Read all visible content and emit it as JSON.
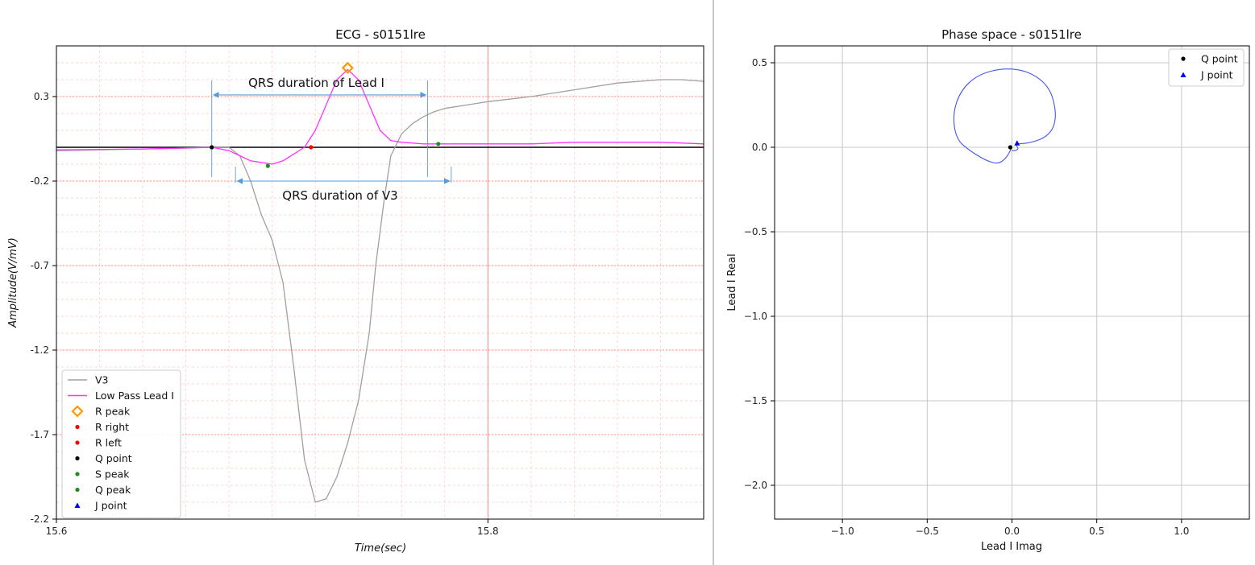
{
  "chart_data": [
    {
      "type": "line",
      "title": "ECG - s0151lre",
      "xlabel": "Time(sec)",
      "ylabel": "Amplitude(V/mV)",
      "xlim": [
        15.6,
        15.9
      ],
      "ylim": [
        -2.2,
        0.6
      ],
      "xticks": [
        15.6,
        15.8
      ],
      "xtick_labels": [
        "15.6",
        "15.8"
      ],
      "yticks": [
        0.3,
        -0.2,
        -0.7,
        -1.2,
        -1.7,
        -2.2
      ],
      "ytick_labels": [
        "0.3",
        "-0.2",
        "-0.7",
        "-1.2",
        "-1.7",
        "-2.2"
      ],
      "grid": true,
      "legend_position": "lower-left",
      "series": [
        {
          "name": "V3",
          "color": "#a0a0a0",
          "x": [
            15.6,
            15.64,
            15.66,
            15.672,
            15.68,
            15.685,
            15.69,
            15.695,
            15.7,
            15.705,
            15.71,
            15.715,
            15.72,
            15.725,
            15.73,
            15.735,
            15.74,
            15.745,
            15.748,
            15.752,
            15.755,
            15.76,
            15.765,
            15.77,
            15.775,
            15.78,
            15.79,
            15.8,
            15.82,
            15.84,
            15.86,
            15.88,
            15.89,
            15.9
          ],
          "y": [
            -0.02,
            -0.01,
            -0.005,
            0.0,
            0.0,
            -0.05,
            -0.2,
            -0.4,
            -0.55,
            -0.8,
            -1.3,
            -1.85,
            -2.1,
            -2.08,
            -1.95,
            -1.75,
            -1.5,
            -1.1,
            -0.7,
            -0.3,
            -0.05,
            0.08,
            0.14,
            0.18,
            0.21,
            0.23,
            0.25,
            0.27,
            0.3,
            0.34,
            0.38,
            0.4,
            0.4,
            0.39
          ]
        },
        {
          "name": "Low Pass Lead I",
          "color": "#ff33ff",
          "x": [
            15.6,
            15.64,
            15.672,
            15.68,
            15.685,
            15.69,
            15.7,
            15.705,
            15.71,
            15.715,
            15.72,
            15.725,
            15.73,
            15.735,
            15.74,
            15.745,
            15.75,
            15.755,
            15.76,
            15.77,
            15.78,
            15.8,
            15.82,
            15.84,
            15.86,
            15.88,
            15.9
          ],
          "y": [
            -0.015,
            -0.01,
            0.0,
            -0.02,
            -0.05,
            -0.08,
            -0.1,
            -0.08,
            -0.04,
            0.0,
            0.1,
            0.25,
            0.4,
            0.46,
            0.4,
            0.25,
            0.1,
            0.04,
            0.03,
            0.02,
            0.02,
            0.02,
            0.02,
            0.03,
            0.03,
            0.03,
            0.02
          ]
        }
      ],
      "markers": [
        {
          "name": "R peak",
          "symbol": "diamond",
          "color": "#ff9900",
          "x": [
            15.735
          ],
          "y": [
            0.47
          ]
        },
        {
          "name": "R right",
          "symbol": "circle",
          "color": "#ff0000",
          "x": [
            15.718
          ],
          "y": [
            0.0
          ]
        },
        {
          "name": "R left",
          "symbol": "circle",
          "color": "#ff0000",
          "x": [],
          "y": []
        },
        {
          "name": "Q point",
          "symbol": "circle",
          "color": "#000000",
          "x": [
            15.672
          ],
          "y": [
            0.0
          ]
        },
        {
          "name": "S peak",
          "symbol": "circle",
          "color": "#228b22",
          "x": [
            15.698
          ],
          "y": [
            -0.11
          ]
        },
        {
          "name": "Q peak",
          "symbol": "circle",
          "color": "#228b22",
          "x": [
            15.777
          ],
          "y": [
            0.02
          ]
        },
        {
          "name": "J point",
          "symbol": "triangle",
          "color": "#0000ff",
          "x": [],
          "y": []
        }
      ],
      "annotations": [
        {
          "text": "QRS duration of Lead I",
          "x_start": 15.672,
          "x_end": 15.772,
          "y": 0.31
        },
        {
          "text": "QRS duration of V3",
          "x_start": 15.683,
          "x_end": 15.783,
          "y": -0.2
        }
      ]
    },
    {
      "type": "scatter",
      "title": "Phase space - s0151lre",
      "xlabel": "Lead I Imag",
      "ylabel": "Lead I Real",
      "xlim": [
        -1.4,
        1.4
      ],
      "ylim": [
        -2.2,
        0.6
      ],
      "xticks": [
        -1.0,
        -0.5,
        0.0,
        0.5,
        1.0
      ],
      "xtick_labels": [
        "−1.0",
        "−0.5",
        "0.0",
        "0.5",
        "1.0"
      ],
      "yticks": [
        0.5,
        0.0,
        -0.5,
        -1.0,
        -1.5,
        -2.0
      ],
      "ytick_labels": [
        "0.5",
        "0.0",
        "−0.5",
        "−1.0",
        "−1.5",
        "−2.0"
      ],
      "grid": true,
      "legend_position": "top-right",
      "trajectory": {
        "color": "#4455ee",
        "x": [
          0.0,
          -0.03,
          -0.08,
          -0.15,
          -0.25,
          -0.33,
          -0.35,
          -0.3,
          -0.2,
          -0.05,
          0.1,
          0.22,
          0.26,
          0.25,
          0.2,
          0.12,
          0.05,
          0.02,
          0.04,
          0.02,
          0.0
        ],
        "y": [
          0.0,
          -0.06,
          -0.1,
          -0.08,
          -0.02,
          0.05,
          0.2,
          0.34,
          0.43,
          0.47,
          0.45,
          0.36,
          0.22,
          0.12,
          0.06,
          0.03,
          0.02,
          0.02,
          -0.01,
          -0.02,
          -0.02
        ]
      },
      "markers": [
        {
          "name": "Q point",
          "symbol": "circle",
          "color": "#000000",
          "x": [
            -0.01
          ],
          "y": [
            0.0
          ]
        },
        {
          "name": "J point",
          "symbol": "triangle",
          "color": "#0000ff",
          "x": [
            0.03
          ],
          "y": [
            0.025
          ]
        }
      ]
    }
  ]
}
